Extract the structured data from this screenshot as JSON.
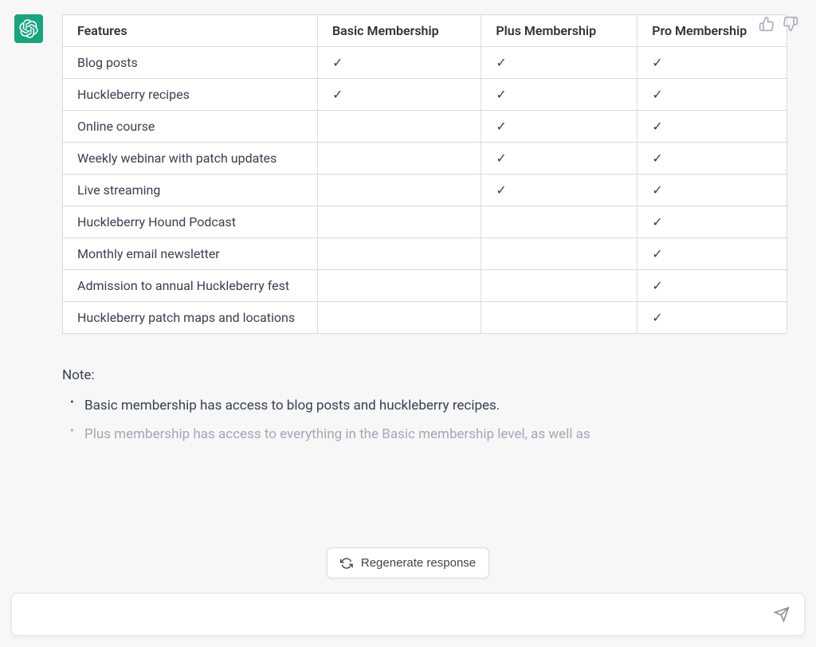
{
  "avatar": {
    "background_color": "#19a37f"
  },
  "feedback": {
    "thumbs_up": "thumbs-up",
    "thumbs_down": "thumbs-down"
  },
  "table": {
    "columns": [
      "Features",
      "Basic Membership",
      "Plus Membership",
      "Pro Membership"
    ],
    "checkmark_glyph": "✓",
    "rows": [
      {
        "feature": "Blog posts",
        "basic": true,
        "plus": true,
        "pro": true
      },
      {
        "feature": "Huckleberry recipes",
        "basic": true,
        "plus": true,
        "pro": true
      },
      {
        "feature": "Online course",
        "basic": false,
        "plus": true,
        "pro": true
      },
      {
        "feature": "Weekly webinar with patch updates",
        "basic": false,
        "plus": true,
        "pro": true
      },
      {
        "feature": "Live streaming",
        "basic": false,
        "plus": true,
        "pro": true
      },
      {
        "feature": "Huckleberry Hound Podcast",
        "basic": false,
        "plus": false,
        "pro": true
      },
      {
        "feature": "Monthly email newsletter",
        "basic": false,
        "plus": false,
        "pro": true
      },
      {
        "feature": "Admission to annual Huckleberry fest",
        "basic": false,
        "plus": false,
        "pro": true
      },
      {
        "feature": "Huckleberry patch maps and locations",
        "basic": false,
        "plus": false,
        "pro": true
      }
    ],
    "border_color": "#d9d9e3",
    "text_color": "#374151",
    "header_color": "#2d333a"
  },
  "note": {
    "label": "Note:",
    "items": [
      "Basic membership has access to blog posts and huckleberry recipes.",
      "Plus membership has access to everything in the Basic membership level, as well as"
    ]
  },
  "regenerate": {
    "label": "Regenerate response"
  },
  "input": {
    "placeholder": ""
  },
  "colors": {
    "background": "#f7f7f8",
    "white": "#ffffff",
    "icon_muted": "#acacbe",
    "text_muted": "#a6a6b6"
  }
}
